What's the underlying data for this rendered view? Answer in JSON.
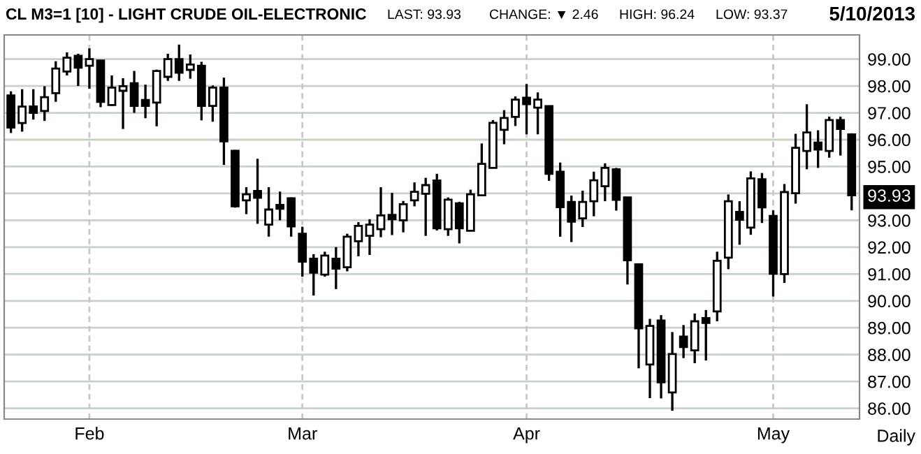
{
  "chart_data": {
    "type": "candlestick",
    "title": "CL M3=1 [10] - LIGHT CRUDE OIL-ELECTRONIC",
    "annotations": [
      "LAST: 93.93",
      "CHANGE: ▼ 2.46",
      "HIGH: 96.24",
      "LOW: 93.37",
      "5/10/2013",
      "Daily"
    ],
    "categories": [
      null,
      null,
      null,
      null,
      null,
      null,
      null,
      "Feb",
      null,
      null,
      null,
      null,
      null,
      null,
      null,
      null,
      null,
      null,
      null,
      null,
      null,
      null,
      null,
      null,
      null,
      null,
      "Mar",
      null,
      null,
      null,
      null,
      null,
      null,
      null,
      null,
      null,
      null,
      null,
      null,
      null,
      null,
      null,
      null,
      null,
      null,
      null,
      "Apr",
      null,
      null,
      null,
      null,
      null,
      null,
      null,
      null,
      null,
      null,
      null,
      null,
      null,
      null,
      null,
      null,
      null,
      null,
      null,
      null,
      null,
      "May",
      null,
      null,
      null,
      null,
      null,
      null,
      null
    ],
    "ohlc": [
      [
        97.65,
        97.8,
        96.25,
        96.45
      ],
      [
        96.62,
        97.88,
        96.3,
        97.23
      ],
      [
        97.24,
        97.88,
        96.75,
        97.0
      ],
      [
        97.07,
        97.99,
        96.7,
        97.58
      ],
      [
        97.73,
        98.92,
        97.41,
        98.65
      ],
      [
        98.54,
        99.25,
        98.39,
        99.05
      ],
      [
        99.12,
        99.2,
        98.0,
        98.68
      ],
      [
        98.75,
        99.4,
        97.9,
        99.0
      ],
      [
        98.95,
        98.95,
        97.21,
        97.41
      ],
      [
        97.29,
        98.39,
        97.26,
        97.94
      ],
      [
        97.82,
        98.29,
        96.4,
        97.99
      ],
      [
        98.1,
        98.56,
        97.0,
        97.26
      ],
      [
        97.48,
        98.05,
        96.8,
        97.26
      ],
      [
        97.38,
        98.61,
        96.5,
        98.56
      ],
      [
        98.34,
        99.2,
        98.19,
        99.0
      ],
      [
        99.0,
        99.54,
        98.19,
        98.49
      ],
      [
        98.6,
        99.17,
        98.27,
        98.8
      ],
      [
        98.75,
        98.9,
        96.72,
        97.26
      ],
      [
        97.26,
        98.02,
        96.67,
        97.94
      ],
      [
        97.94,
        98.31,
        95.06,
        95.94
      ],
      [
        95.59,
        95.62,
        93.47,
        93.52
      ],
      [
        93.74,
        94.23,
        93.23,
        93.97
      ],
      [
        94.09,
        95.29,
        92.87,
        93.84
      ],
      [
        92.84,
        94.23,
        92.39,
        93.4
      ],
      [
        93.57,
        94.07,
        93.0,
        93.43
      ],
      [
        93.82,
        93.85,
        92.39,
        92.77
      ],
      [
        92.5,
        92.76,
        90.9,
        91.46
      ],
      [
        91.57,
        91.74,
        90.2,
        91.05
      ],
      [
        90.98,
        91.83,
        90.9,
        91.69
      ],
      [
        91.57,
        92.0,
        90.44,
        91.2
      ],
      [
        91.25,
        92.5,
        91.1,
        92.39
      ],
      [
        92.22,
        92.93,
        91.66,
        92.79
      ],
      [
        92.42,
        93.04,
        91.71,
        92.84
      ],
      [
        92.67,
        94.23,
        92.37,
        93.18
      ],
      [
        93.2,
        94.02,
        92.45,
        93.04
      ],
      [
        93.0,
        93.72,
        92.55,
        93.6
      ],
      [
        93.74,
        94.41,
        93.52,
        94.06
      ],
      [
        93.99,
        94.58,
        92.42,
        94.31
      ],
      [
        94.48,
        94.73,
        92.62,
        92.7
      ],
      [
        92.67,
        93.85,
        92.42,
        93.77
      ],
      [
        93.63,
        93.69,
        92.14,
        92.7
      ],
      [
        92.61,
        94.14,
        92.6,
        93.97
      ],
      [
        93.93,
        95.86,
        93.93,
        95.1
      ],
      [
        94.95,
        96.73,
        94.95,
        96.63
      ],
      [
        96.37,
        97.1,
        95.83,
        96.81
      ],
      [
        96.85,
        97.61,
        96.51,
        97.49
      ],
      [
        97.56,
        98.07,
        96.2,
        97.32
      ],
      [
        97.19,
        97.76,
        96.2,
        97.49
      ],
      [
        97.25,
        97.25,
        94.47,
        94.73
      ],
      [
        94.81,
        95.15,
        92.39,
        93.49
      ],
      [
        93.68,
        93.92,
        92.19,
        92.95
      ],
      [
        93.07,
        94.1,
        92.75,
        93.68
      ],
      [
        93.71,
        94.81,
        93.15,
        94.49
      ],
      [
        94.27,
        95.12,
        93.71,
        94.95
      ],
      [
        94.9,
        94.95,
        93.36,
        93.76
      ],
      [
        93.85,
        93.85,
        90.61,
        91.51
      ],
      [
        91.36,
        91.36,
        87.49,
        88.98
      ],
      [
        87.63,
        89.33,
        86.38,
        89.07
      ],
      [
        89.27,
        89.47,
        86.37,
        86.97
      ],
      [
        86.59,
        88.84,
        85.91,
        88.02
      ],
      [
        88.67,
        89.1,
        87.87,
        88.28
      ],
      [
        88.16,
        89.53,
        87.68,
        89.24
      ],
      [
        89.36,
        89.66,
        87.78,
        89.18
      ],
      [
        89.61,
        91.83,
        89.24,
        91.49
      ],
      [
        91.61,
        93.96,
        91.18,
        93.71
      ],
      [
        93.31,
        93.71,
        92.09,
        93.02
      ],
      [
        92.73,
        94.82,
        92.46,
        94.56
      ],
      [
        94.53,
        94.76,
        92.9,
        93.48
      ],
      [
        93.16,
        93.37,
        90.16,
        91.01
      ],
      [
        91.0,
        94.35,
        90.67,
        94.05
      ],
      [
        94.01,
        96.22,
        93.62,
        95.7
      ],
      [
        95.58,
        97.32,
        94.9,
        96.27
      ],
      [
        95.89,
        96.35,
        94.95,
        95.63
      ],
      [
        95.58,
        96.86,
        95.33,
        96.73
      ],
      [
        96.73,
        96.86,
        95.41,
        96.4
      ],
      [
        96.2,
        96.24,
        93.37,
        93.93
      ]
    ],
    "ylim": [
      85.6,
      99.9
    ],
    "yticks": [
      {
        "value": 86,
        "label": "86.00"
      },
      {
        "value": 87,
        "label": "87.00"
      },
      {
        "value": 88,
        "label": "88.00"
      },
      {
        "value": 89,
        "label": "89.00"
      },
      {
        "value": 90,
        "label": "90.00"
      },
      {
        "value": 91,
        "label": "91.00"
      },
      {
        "value": 92,
        "label": "92.00"
      },
      {
        "value": 93,
        "label": "93.00"
      },
      {
        "value": 93.93,
        "label": "93.93"
      },
      {
        "value": 94,
        "label": null
      },
      {
        "value": 95,
        "label": "95.00"
      },
      {
        "value": 96,
        "label": "96.00"
      },
      {
        "value": 97,
        "label": "97.00"
      },
      {
        "value": 98,
        "label": "98.00"
      },
      {
        "value": 99,
        "label": "99.00"
      }
    ],
    "grid": true
  }
}
